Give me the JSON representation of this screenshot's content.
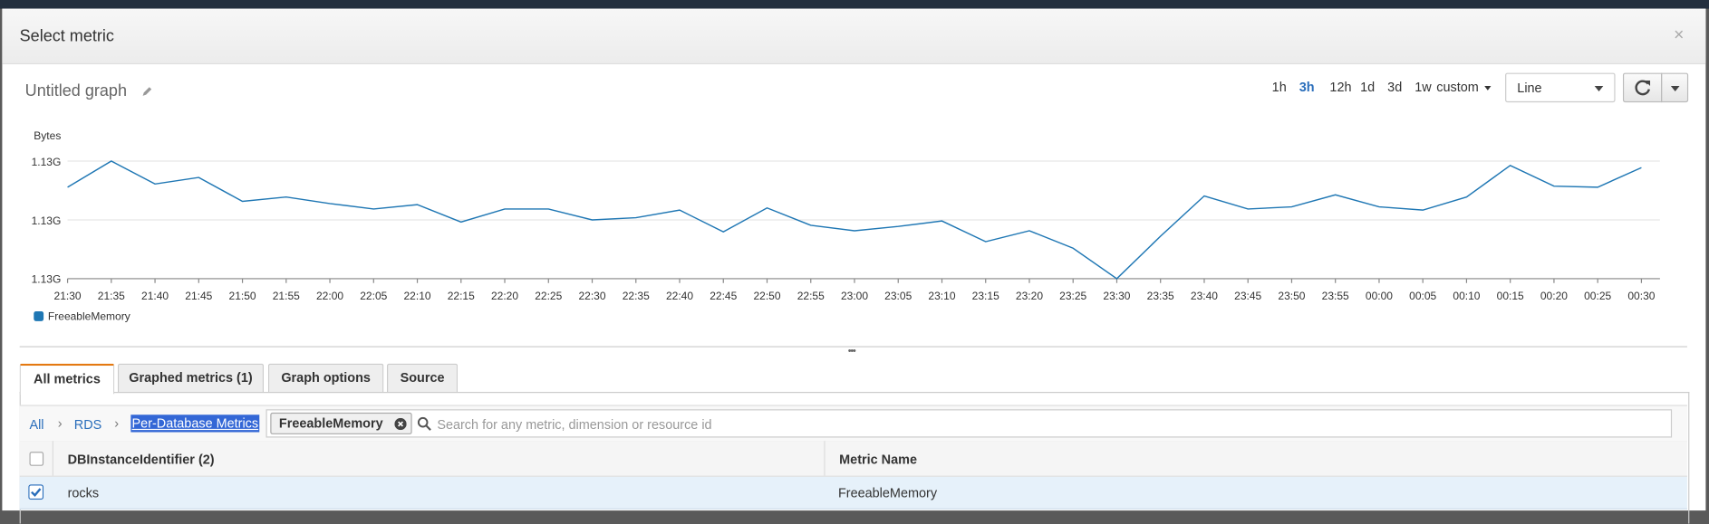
{
  "header": {
    "title": "Select metric",
    "close": "×"
  },
  "graph": {
    "title": "Untitled graph",
    "time_ranges": [
      "1h",
      "3h",
      "12h",
      "1d",
      "3d",
      "1w",
      "custom"
    ],
    "selected_range": "3h",
    "view": "Line"
  },
  "chart_data": {
    "type": "line",
    "y_label": "Bytes",
    "categories": [
      "21:30",
      "21:35",
      "21:40",
      "21:45",
      "21:50",
      "21:55",
      "22:00",
      "22:05",
      "22:10",
      "22:15",
      "22:20",
      "22:25",
      "22:30",
      "22:35",
      "22:40",
      "22:45",
      "22:50",
      "22:55",
      "23:00",
      "23:05",
      "23:10",
      "23:15",
      "23:20",
      "23:25",
      "23:30",
      "23:35",
      "23:40",
      "23:45",
      "23:50",
      "23:55",
      "00:00",
      "00:05",
      "00:10",
      "00:15",
      "00:20",
      "00:25",
      "00:30"
    ],
    "series": [
      {
        "name": "FreeableMemory",
        "color": "#1f77b4",
        "values": [
          1133111000,
          1134000000,
          1133222000,
          1133444000,
          1132630000,
          1132778000,
          1132556000,
          1132370000,
          1132519000,
          1131926000,
          1132370000,
          1132370000,
          1132000000,
          1132074000,
          1132333000,
          1131593000,
          1132407000,
          1131815000,
          1131630000,
          1131778000,
          1131963000,
          1131259000,
          1131630000,
          1131037000,
          1130000000,
          1131444000,
          1132815000,
          1132370000,
          1132444000,
          1132852000,
          1132444000,
          1132333000,
          1132778000,
          1133852000,
          1133148000,
          1133111000,
          1133778000
        ]
      }
    ],
    "ylim": [
      1130000000,
      1134000000
    ],
    "yticks": [
      {
        "value": 1130000000,
        "label": "1.13G"
      },
      {
        "value": 1132000000,
        "label": "1.13G"
      },
      {
        "value": 1134000000,
        "label": "1.13G"
      }
    ],
    "grid": true
  },
  "tabs": [
    "All metrics",
    "Graphed metrics (1)",
    "Graph options",
    "Source"
  ],
  "breadcrumb": [
    "All",
    "RDS",
    "Per-Database Metrics"
  ],
  "search": {
    "chip": "FreeableMemory",
    "placeholder": "Search for any metric, dimension or resource id"
  },
  "table": {
    "columns": [
      "DBInstanceIdentifier (2)",
      "Metric Name"
    ],
    "rows": [
      [
        "rocks",
        "FreeableMemory"
      ]
    ]
  }
}
